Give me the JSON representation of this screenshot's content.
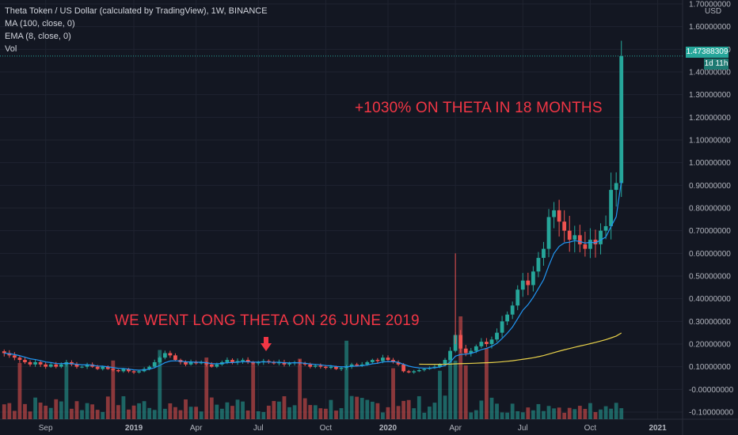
{
  "legend": {
    "title": "Theta Token / US Dollar (calculated by TradingView), 1W, BINANCE",
    "ma": "MA (100, close, 0)",
    "ema": "EMA (8, close, 0)",
    "vol": "Vol"
  },
  "annotations": {
    "gain": "+1030% ON THETA IN 18 MONTHS",
    "entry": "WE WENT LONG THETA ON 26 JUNE 2019"
  },
  "price_axis": {
    "currency": "USD",
    "current_price": "1.47388309",
    "countdown": "1d 11h"
  },
  "colors": {
    "up": "#26a69a",
    "down": "#ef5350",
    "ema": "#2196f3",
    "ma": "#e8d14a",
    "annotation": "#f23645",
    "background": "#131722"
  },
  "chart_data": {
    "type": "candlestick",
    "interval": "1W",
    "y_axis_ticks": [
      "1.70000000",
      "1.60000000",
      "1.50000000",
      "1.40000000",
      "1.30000000",
      "1.20000000",
      "1.10000000",
      "1.00000000",
      "0.90000000",
      "0.80000000",
      "0.70000000",
      "0.60000000",
      "0.50000000",
      "0.40000000",
      "0.30000000",
      "0.20000000",
      "0.10000000",
      "-0.00000000",
      "-0.10000000"
    ],
    "x_axis_ticks": [
      {
        "label": "Sep",
        "week": 8
      },
      {
        "label": "2019",
        "week": 25
      },
      {
        "label": "Apr",
        "week": 37
      },
      {
        "label": "Jul",
        "week": 49
      },
      {
        "label": "Oct",
        "week": 62
      },
      {
        "label": "2020",
        "week": 74
      },
      {
        "label": "Apr",
        "week": 87
      },
      {
        "label": "Jul",
        "week": 100
      },
      {
        "label": "Oct",
        "week": 113
      },
      {
        "label": "2021",
        "week": 126
      }
    ],
    "ylim": [
      -0.1,
      1.72
    ],
    "close": [
      0.16,
      0.15,
      0.14,
      0.13,
      0.12,
      0.11,
      0.12,
      0.11,
      0.1,
      0.11,
      0.1,
      0.11,
      0.12,
      0.11,
      0.1,
      0.1,
      0.11,
      0.1,
      0.09,
      0.1,
      0.09,
      0.085,
      0.08,
      0.09,
      0.08,
      0.075,
      0.08,
      0.09,
      0.1,
      0.12,
      0.14,
      0.16,
      0.15,
      0.13,
      0.12,
      0.11,
      0.12,
      0.115,
      0.12,
      0.11,
      0.1,
      0.11,
      0.12,
      0.13,
      0.12,
      0.125,
      0.13,
      0.12,
      0.115,
      0.12,
      0.125,
      0.12,
      0.115,
      0.12,
      0.11,
      0.115,
      0.12,
      0.115,
      0.11,
      0.1,
      0.105,
      0.1,
      0.095,
      0.1,
      0.09,
      0.095,
      0.1,
      0.11,
      0.105,
      0.11,
      0.12,
      0.13,
      0.125,
      0.14,
      0.13,
      0.12,
      0.11,
      0.08,
      0.075,
      0.08,
      0.085,
      0.09,
      0.095,
      0.1,
      0.11,
      0.13,
      0.17,
      0.24,
      0.18,
      0.16,
      0.17,
      0.19,
      0.21,
      0.2,
      0.22,
      0.25,
      0.3,
      0.33,
      0.37,
      0.44,
      0.48,
      0.46,
      0.52,
      0.58,
      0.62,
      0.76,
      0.79,
      0.74,
      0.7,
      0.66,
      0.68,
      0.64,
      0.62,
      0.66,
      0.64,
      0.7,
      0.72,
      0.88,
      0.91,
      1.47
    ],
    "ema8_label": "EMA (8, close, 0)",
    "ma100_label": "MA (100, close, 0)"
  }
}
